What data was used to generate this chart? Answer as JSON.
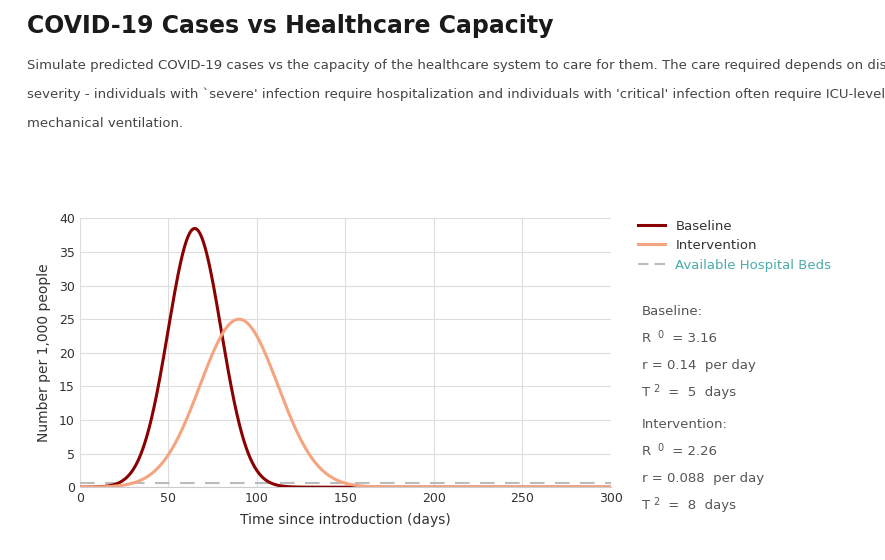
{
  "title": "COVID-19 Cases vs Healthcare Capacity",
  "subtitle_line1": "Simulate predicted COVID-19 cases vs the capacity of the healthcare system to care for them. The care required depends on disease",
  "subtitle_line2": "severity - individuals with `severe' infection require hospitalization and individuals with 'critical' infection often require ICU-level care and",
  "subtitle_line3": "mechanical ventilation.",
  "xlabel": "Time since introduction (days)",
  "ylabel": "Number per 1,000 people",
  "xlim": [
    0,
    300
  ],
  "ylim": [
    0,
    40
  ],
  "yticks": [
    0,
    5,
    10,
    15,
    20,
    25,
    30,
    35,
    40
  ],
  "xticks": [
    0,
    50,
    100,
    150,
    200,
    250,
    300
  ],
  "baseline_color": "#8B0000",
  "intervention_color": "#F4A580",
  "hospital_beds_color": "#BBBBBB",
  "hospital_beds_value": 0.65,
  "baseline_peak": 38.5,
  "baseline_peak_day": 65,
  "baseline_sigma": 15,
  "intervention_peak": 25,
  "intervention_peak_day": 90,
  "intervention_sigma": 22,
  "legend_labels": [
    "Baseline",
    "Intervention",
    "Available Hospital Beds"
  ],
  "title_fontsize": 17,
  "subtitle_fontsize": 9.5,
  "axis_label_fontsize": 10,
  "tick_fontsize": 9,
  "legend_fontsize": 9.5,
  "annotation_fontsize": 9.5,
  "background_color": "#FFFFFF",
  "grid_color": "#DDDDDD",
  "text_color": "#333333",
  "annotation_text_color": "#555555",
  "hosp_beds_label_color": "#4AABAB"
}
